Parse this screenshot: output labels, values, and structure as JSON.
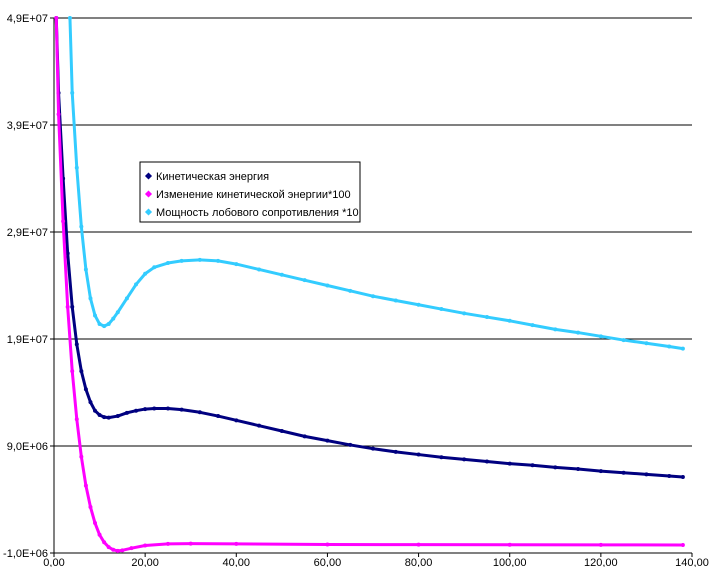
{
  "chart_data": {
    "type": "scatter",
    "title": "",
    "xlabel": "",
    "ylabel": "",
    "xlim": [
      0,
      140
    ],
    "ylim": [
      -1000000,
      49000000
    ],
    "x_ticks": [
      0,
      20,
      40,
      60,
      80,
      100,
      120,
      140
    ],
    "x_tick_labels": [
      "0,00",
      "20,00",
      "40,00",
      "60,00",
      "80,00",
      "100,00",
      "120,00",
      "140,00"
    ],
    "y_ticks": [
      -1000000,
      9000000,
      19000000,
      29000000,
      39000000,
      49000000
    ],
    "y_tick_labels": [
      "-1,0E+06",
      "9,0E+06",
      "1,9E+07",
      "2,9E+07",
      "3,9E+07",
      "4,9E+07"
    ],
    "grid": "horizontal",
    "legend_position": "upper-left",
    "series": [
      {
        "name": "Кинетическая энергия",
        "color": "#000080",
        "points": [
          [
            0.5,
            49000000
          ],
          [
            1,
            42000000
          ],
          [
            2,
            34000000
          ],
          [
            3,
            27000000
          ],
          [
            4,
            22000000
          ],
          [
            5,
            18500000
          ],
          [
            6,
            16000000
          ],
          [
            7,
            14300000
          ],
          [
            8,
            13100000
          ],
          [
            9,
            12300000
          ],
          [
            10,
            11900000
          ],
          [
            11,
            11700000
          ],
          [
            12,
            11650000
          ],
          [
            14,
            11800000
          ],
          [
            16,
            12100000
          ],
          [
            18,
            12300000
          ],
          [
            20,
            12450000
          ],
          [
            22,
            12500000
          ],
          [
            25,
            12500000
          ],
          [
            28,
            12400000
          ],
          [
            32,
            12150000
          ],
          [
            36,
            11800000
          ],
          [
            40,
            11400000
          ],
          [
            45,
            10900000
          ],
          [
            50,
            10400000
          ],
          [
            55,
            9900000
          ],
          [
            60,
            9500000
          ],
          [
            65,
            9100000
          ],
          [
            70,
            8750000
          ],
          [
            75,
            8450000
          ],
          [
            80,
            8200000
          ],
          [
            85,
            7950000
          ],
          [
            90,
            7750000
          ],
          [
            95,
            7550000
          ],
          [
            100,
            7350000
          ],
          [
            105,
            7200000
          ],
          [
            110,
            7000000
          ],
          [
            115,
            6850000
          ],
          [
            120,
            6650000
          ],
          [
            125,
            6500000
          ],
          [
            130,
            6350000
          ],
          [
            135,
            6200000
          ],
          [
            138,
            6100000
          ]
        ]
      },
      {
        "name": "Изменение кинетической энергии*100",
        "color": "#FF00FF",
        "points": [
          [
            0.5,
            49000000
          ],
          [
            1,
            40000000
          ],
          [
            2,
            30000000
          ],
          [
            3,
            22000000
          ],
          [
            4,
            16000000
          ],
          [
            5,
            11500000
          ],
          [
            6,
            8000000
          ],
          [
            7,
            5300000
          ],
          [
            8,
            3300000
          ],
          [
            9,
            1800000
          ],
          [
            10,
            700000
          ],
          [
            11,
            0
          ],
          [
            12,
            -450000
          ],
          [
            13,
            -700000
          ],
          [
            14,
            -800000
          ],
          [
            15,
            -750000
          ],
          [
            17,
            -550000
          ],
          [
            20,
            -300000
          ],
          [
            25,
            -150000
          ],
          [
            30,
            -120000
          ],
          [
            40,
            -150000
          ],
          [
            60,
            -200000
          ],
          [
            80,
            -220000
          ],
          [
            100,
            -230000
          ],
          [
            120,
            -240000
          ],
          [
            138,
            -250000
          ]
        ]
      },
      {
        "name": "Мощность лобового сопротивления *10",
        "color": "#33CCFF",
        "points": [
          [
            3.5,
            49000000
          ],
          [
            4,
            42000000
          ],
          [
            5,
            35000000
          ],
          [
            6,
            29500000
          ],
          [
            7,
            25500000
          ],
          [
            8,
            22800000
          ],
          [
            9,
            21200000
          ],
          [
            10,
            20400000
          ],
          [
            11,
            20200000
          ],
          [
            12,
            20400000
          ],
          [
            13,
            20900000
          ],
          [
            14,
            21500000
          ],
          [
            16,
            22800000
          ],
          [
            18,
            24100000
          ],
          [
            20,
            25100000
          ],
          [
            22,
            25700000
          ],
          [
            25,
            26100000
          ],
          [
            28,
            26300000
          ],
          [
            32,
            26400000
          ],
          [
            36,
            26300000
          ],
          [
            40,
            26000000
          ],
          [
            45,
            25500000
          ],
          [
            50,
            25000000
          ],
          [
            55,
            24500000
          ],
          [
            60,
            24000000
          ],
          [
            65,
            23500000
          ],
          [
            70,
            23000000
          ],
          [
            75,
            22600000
          ],
          [
            80,
            22200000
          ],
          [
            85,
            21800000
          ],
          [
            90,
            21400000
          ],
          [
            95,
            21050000
          ],
          [
            100,
            20700000
          ],
          [
            105,
            20300000
          ],
          [
            110,
            19900000
          ],
          [
            115,
            19600000
          ],
          [
            120,
            19250000
          ],
          [
            125,
            18900000
          ],
          [
            130,
            18600000
          ],
          [
            135,
            18300000
          ],
          [
            138,
            18100000
          ]
        ]
      }
    ]
  }
}
